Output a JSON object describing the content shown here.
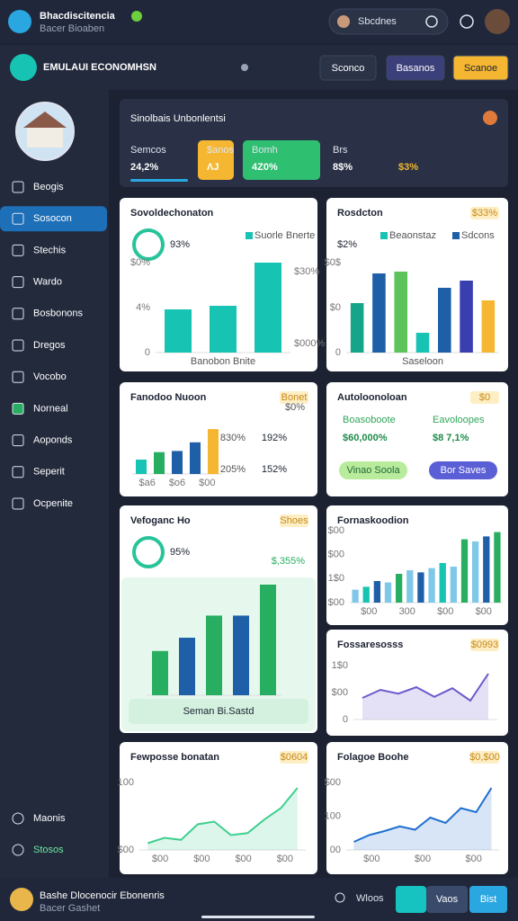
{
  "header": {
    "app_name": "Bhacdiscitencia",
    "app_subtitle": "Bacer Bioaben",
    "search": "Sbcdnes"
  },
  "toolbar": {
    "title": "EMULAUI ECONOMHSN",
    "buttons": [
      "Sconco",
      "Basanos",
      "Scanoe"
    ]
  },
  "sidebar": {
    "items": [
      "Beogis",
      "Sosocon",
      "Stechis",
      "Wardo",
      "Bosbonons",
      "Dregos",
      "Vocobo",
      "Norneal",
      "Aoponds",
      "Seperit",
      "Ocpenite"
    ],
    "active": 1,
    "bottom_items": [
      "Maonis",
      "Stosos"
    ]
  },
  "summary": {
    "title": "Sinolbais Unbonlentsi",
    "stats": [
      {
        "label": "Semcos",
        "value": "24,2%"
      },
      {
        "label": "$anos",
        "value": "ɅJ"
      },
      {
        "label": "Bomh",
        "value": "4Z0%"
      },
      {
        "label": "Brs",
        "value": "8$%"
      },
      {
        "value": "$3%"
      }
    ]
  },
  "cards": [
    {
      "title": "Sovoldechonaton",
      "kpi": "93%",
      "legend": [
        "Suorle Bnerte"
      ],
      "yticks": [
        "$0%",
        "4%",
        "0"
      ],
      "y2ticks": [
        "$30%",
        "$000%"
      ],
      "xlabel": "Banobon Bnite",
      "chart": {
        "kind": "bar",
        "ylim": [
          0,
          100
        ],
        "values": [
          48,
          52,
          100
        ],
        "colors": [
          "#17c3b2",
          "#17c3b2",
          "#17c3b2"
        ]
      }
    },
    {
      "title": "Rosdcton",
      "badge": "$33%",
      "kpi": "$2%",
      "legend": [
        "Beaonstaz",
        "Sdcons"
      ],
      "yticks": [
        "$0$",
        "$0",
        "0"
      ],
      "xlabel": "Saseloon",
      "chart": {
        "kind": "bar",
        "ylim": [
          0,
          100
        ],
        "values": [
          55,
          88,
          90,
          22,
          72,
          80,
          58
        ],
        "colors": [
          "#17a589",
          "#1f5fa8",
          "#5cc45a",
          "#17c3b2",
          "#1f5fa8",
          "#3a3fb0",
          "#f5b731"
        ]
      }
    },
    {
      "title": "Fanodoo Nuoon",
      "badge": "Bonet",
      "note": "$0%",
      "xticks": [
        "$a6",
        "$o6",
        "$00"
      ],
      "stats": [
        {
          "label": "830%",
          "value": "192%"
        },
        {
          "label": "205%",
          "value": "152%"
        }
      ],
      "chart": {
        "kind": "bar",
        "ylim": [
          0,
          100
        ],
        "values": [
          25,
          38,
          40,
          55,
          78
        ],
        "colors": [
          "#17c3b2",
          "#27ae60",
          "#1f5fa8",
          "#1f5fa8",
          "#f5b731"
        ]
      }
    },
    {
      "title": "Autoloonoloan",
      "badge": "$0",
      "stats": [
        {
          "label": "Boasoboote",
          "value": "$60,000%"
        },
        {
          "label": "Eavoloopes",
          "value": "$8 7,1%"
        }
      ],
      "buttons": [
        "Vinao Soola",
        "Bor Saves"
      ]
    },
    {
      "title": "Vefoganc Ho",
      "badge": "Shoes",
      "kpi": "95%",
      "note": "$,355%",
      "footer": "Seman Bi.Sastd",
      "chart": {
        "kind": "bar",
        "ylim": [
          0,
          100
        ],
        "values": [
          40,
          52,
          72,
          72,
          100
        ],
        "colors": [
          "#27ae60",
          "#1f5fa8",
          "#27ae60",
          "#1f5fa8",
          "#27ae60"
        ]
      }
    },
    {
      "title": "Fornaskoodion",
      "yticks": [
        "$00",
        "$00",
        "1$0",
        "$00"
      ],
      "xticks": [
        "$00",
        "300",
        "$00",
        "$00"
      ],
      "chart": {
        "kind": "bar",
        "ylim": [
          0,
          100
        ],
        "values": [
          18,
          22,
          30,
          28,
          40,
          45,
          42,
          48,
          55,
          50,
          88,
          85,
          92,
          98
        ],
        "colors": [
          "#7fc8e8",
          "#17c3b2",
          "#1f5fa8",
          "#7fc8e8",
          "#27ae60",
          "#7fc8e8",
          "#1f5fa8",
          "#7fc8e8",
          "#17c3b2",
          "#7fc8e8",
          "#27ae60",
          "#7fc8e8",
          "#1f5fa8",
          "#27ae60"
        ]
      }
    },
    {
      "title": "Fossaresosss",
      "badge": "$0993",
      "yticks": [
        "1$0",
        "$00",
        "0"
      ],
      "chart": {
        "kind": "line",
        "ylim": [
          0,
          100
        ],
        "values": [
          40,
          55,
          48,
          60,
          42,
          58,
          35,
          85
        ],
        "color": "#6a5acd"
      }
    },
    {
      "title": "Fewposse bonatan",
      "badge": "$0604",
      "yticks": [
        "100",
        "$00"
      ],
      "xticks": [
        "$00",
        "$00",
        "$00",
        "$00"
      ],
      "chart": {
        "kind": "line",
        "ylim": [
          0,
          100
        ],
        "values": [
          10,
          18,
          15,
          38,
          42,
          22,
          25,
          45,
          62,
          92
        ],
        "color": "#3fcf8e"
      }
    },
    {
      "title": "Folagoe Boohe",
      "badge": "$0,$00",
      "yticks": [
        "$00",
        "100",
        "00"
      ],
      "xticks": [
        "$00",
        "$00",
        "$00"
      ],
      "chart": {
        "kind": "line",
        "ylim": [
          0,
          100
        ],
        "values": [
          12,
          22,
          28,
          35,
          30,
          48,
          40,
          62,
          56,
          92
        ],
        "color": "#1f6fd0"
      }
    }
  ],
  "footer": {
    "user": "Bashe Dlocenocir Ebonenris",
    "user_subtitle": "Bacer Gashet",
    "link": "Wloos",
    "buttons": [
      "Vaos",
      "Bist"
    ]
  }
}
